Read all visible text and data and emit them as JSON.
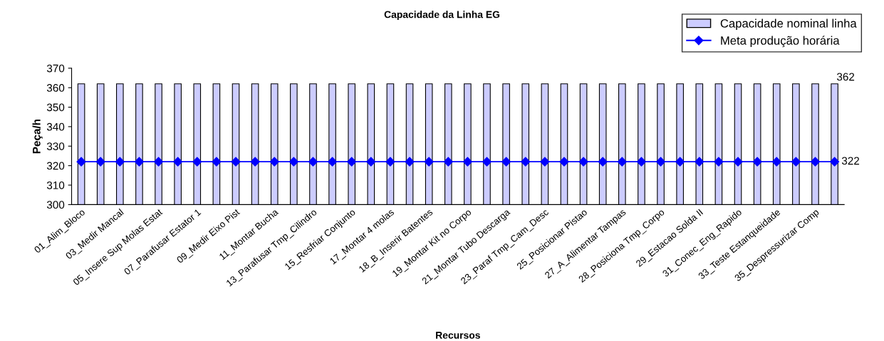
{
  "chart_data": {
    "type": "bar",
    "title": "Capacidade da Linha EG",
    "xlabel": "Recursos",
    "ylabel": "Peça/h",
    "categories": [
      "01_Alim_Bloco",
      null,
      "03_Medir Mancal",
      null,
      "05_Insere Sup Molas Estat",
      null,
      "07_Parafusar Estator 1",
      null,
      "09_Medir Eixo Pist",
      null,
      "11_Montar Bucha",
      null,
      "13_Parafusar Tmp_Cilindro",
      null,
      "15_Resfriar Conjunto",
      null,
      "17_Montar 4 molas",
      null,
      "18_B_Inserir Batentes",
      null,
      "19_Montar Kit no Corpo",
      null,
      "21_Montar Tubo Descarga",
      null,
      "23_Paraf Tmp_Cam_Desc",
      null,
      "25_Posicionar Pistao",
      null,
      "27_A_Alimentar Tampas",
      null,
      "28_Posiciona Tmp_Corpo",
      null,
      "29_Estacao Solda II",
      null,
      "31_Conec_Eng_Rapido",
      null,
      "33_Teste Estanqueidade",
      null,
      "35_Despressurizar Comp",
      null
    ],
    "series": [
      {
        "name": "Capacidade nominal linha",
        "color": "#ccccff",
        "values": [
          362,
          362,
          362,
          362,
          362,
          362,
          362,
          362,
          362,
          362,
          362,
          362,
          362,
          362,
          362,
          362,
          362,
          362,
          362,
          362,
          362,
          362,
          362,
          362,
          362,
          362,
          362,
          362,
          362,
          362,
          362,
          362,
          362,
          362,
          362,
          362,
          362,
          362,
          362,
          362
        ],
        "value_labels": [
          null,
          null,
          null,
          null,
          null,
          null,
          null,
          null,
          null,
          null,
          null,
          null,
          null,
          null,
          null,
          null,
          null,
          null,
          null,
          null,
          null,
          null,
          null,
          null,
          null,
          null,
          null,
          null,
          null,
          null,
          null,
          null,
          null,
          null,
          null,
          null,
          null,
          null,
          null,
          "362"
        ]
      },
      {
        "name": "Meta produção horária",
        "type": "line",
        "color": "#0000ff",
        "marker": "diamond",
        "values": [
          322,
          322,
          322,
          322,
          322,
          322,
          322,
          322,
          322,
          322,
          322,
          322,
          322,
          322,
          322,
          322,
          322,
          322,
          322,
          322,
          322,
          322,
          322,
          322,
          322,
          322,
          322,
          322,
          322,
          322,
          322,
          322,
          322,
          322,
          322,
          322,
          322,
          322,
          322,
          322
        ],
        "value_labels": [
          null,
          null,
          null,
          null,
          null,
          null,
          null,
          null,
          null,
          null,
          null,
          null,
          null,
          null,
          null,
          null,
          null,
          null,
          null,
          null,
          null,
          null,
          null,
          null,
          null,
          null,
          null,
          null,
          null,
          null,
          null,
          null,
          null,
          null,
          null,
          null,
          null,
          null,
          null,
          "322"
        ]
      }
    ],
    "ylim": [
      300,
      370
    ],
    "yticks": [
      300,
      310,
      320,
      330,
      340,
      350,
      360,
      370
    ],
    "grid": false,
    "legend": "top right"
  }
}
